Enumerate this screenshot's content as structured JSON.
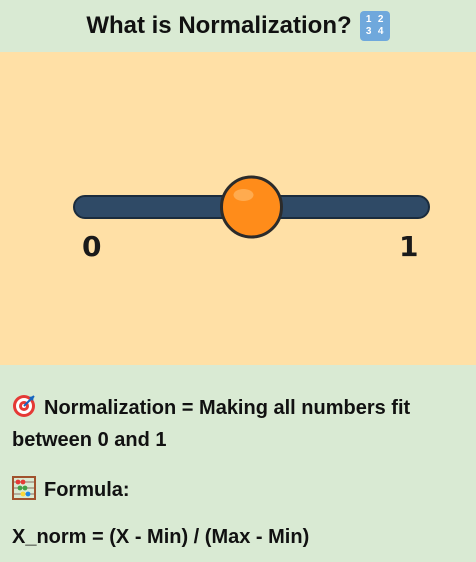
{
  "header": {
    "title": "What is Normalization?",
    "emoji_icon": "input-numbers-icon",
    "emoji_glyphs": [
      "1",
      "2",
      "3",
      "4"
    ]
  },
  "slider": {
    "min_label": "0",
    "max_label": "1",
    "value": 0.5,
    "track_color": "#2f4a66",
    "thumb_color": "#ff8c1a"
  },
  "info": {
    "definition_icon": "target-icon",
    "definition": "Normalization = Making all numbers fit between 0 and 1",
    "formula_icon": "abacus-icon",
    "formula_label": "Formula:",
    "equation": "X_norm = (X - Min) / (Max - Min)"
  },
  "colors": {
    "header_bg": "#d9ead3",
    "panel_bg": "#ffe0a6",
    "footer_bg": "#d9ead3"
  }
}
